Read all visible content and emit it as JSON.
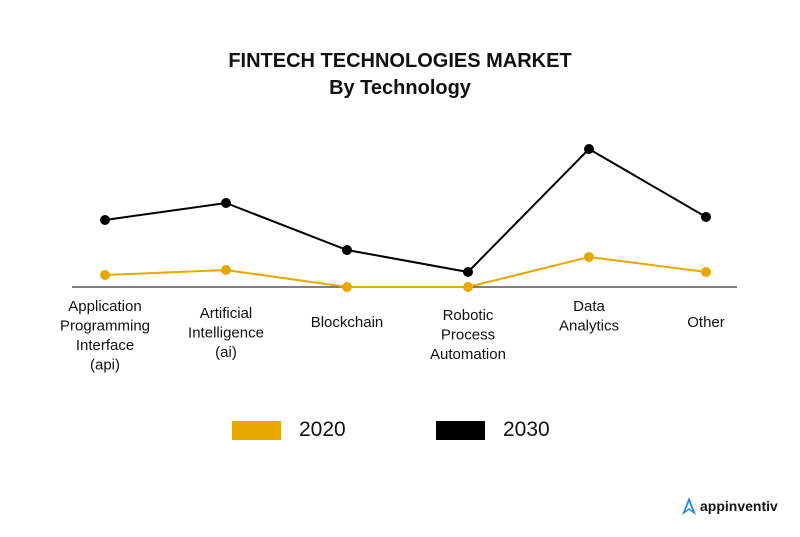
{
  "chart_data": {
    "type": "line",
    "title": "FINTECH TECHNOLOGIES MARKET",
    "subtitle": "By Technology",
    "categories": [
      [
        "Application",
        "Programming",
        "Interface",
        "(api)"
      ],
      [
        "Artificial",
        "Intelligence",
        "(ai)"
      ],
      [
        "Blockchain"
      ],
      [
        "Robotic",
        "Process",
        "Automation"
      ],
      [
        "Data",
        "Analytics"
      ],
      [
        "Other"
      ]
    ],
    "series": [
      {
        "name": "2020",
        "color": "#E8A800",
        "values": [
          12,
          17,
          0,
          0,
          30,
          15
        ]
      },
      {
        "name": "2030",
        "color": "#000000",
        "values": [
          67,
          84,
          37,
          15,
          138,
          70
        ]
      }
    ],
    "ylim": [
      0,
      140
    ],
    "xlabel": "",
    "ylabel": "",
    "grid": false,
    "legend_position": "bottom"
  },
  "brand": {
    "name": "appinventiv",
    "color": "#1E88E5"
  }
}
